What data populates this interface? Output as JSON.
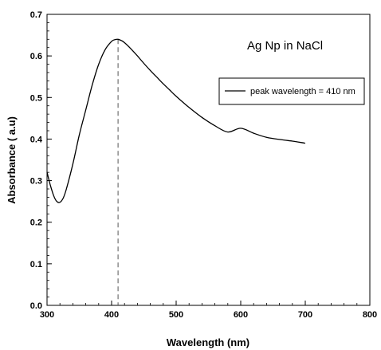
{
  "chart_data": {
    "type": "line",
    "xlabel": "Wavelength (nm)",
    "ylabel": "Absorbance ( a.u)",
    "xlim": [
      300,
      800
    ],
    "ylim": [
      0.0,
      0.7
    ],
    "x_ticks": [
      300,
      400,
      500,
      600,
      700,
      800
    ],
    "y_ticks": [
      0.0,
      0.1,
      0.2,
      0.3,
      0.4,
      0.5,
      0.6,
      0.7
    ],
    "x_tick_labels": [
      "300",
      "400",
      "500",
      "600",
      "700",
      "800"
    ],
    "y_tick_labels": [
      "0.0",
      "0.1",
      "0.2",
      "0.3",
      "0.4",
      "0.5",
      "0.6",
      "0.7"
    ],
    "annotation": "Ag Np in NaCl",
    "legend": {
      "entry": "peak wavelength = 410 nm",
      "position": "upper-right"
    },
    "peak_marker": {
      "x": 410,
      "y": 0.64,
      "style": "dashed"
    },
    "series": [
      {
        "name": "peak wavelength = 410 nm",
        "color": "#000000",
        "x": [
          300,
          305,
          310,
          315,
          320,
          325,
          330,
          340,
          350,
          360,
          370,
          380,
          390,
          400,
          405,
          410,
          415,
          420,
          430,
          440,
          450,
          460,
          470,
          480,
          490,
          500,
          520,
          540,
          560,
          580,
          600,
          620,
          640,
          660,
          680,
          700
        ],
        "y": [
          0.32,
          0.29,
          0.265,
          0.25,
          0.248,
          0.258,
          0.28,
          0.34,
          0.41,
          0.47,
          0.53,
          0.58,
          0.615,
          0.635,
          0.639,
          0.64,
          0.637,
          0.632,
          0.617,
          0.6,
          0.582,
          0.565,
          0.549,
          0.533,
          0.518,
          0.503,
          0.476,
          0.452,
          0.432,
          0.417,
          0.426,
          0.414,
          0.404,
          0.399,
          0.395,
          0.39
        ]
      }
    ]
  }
}
